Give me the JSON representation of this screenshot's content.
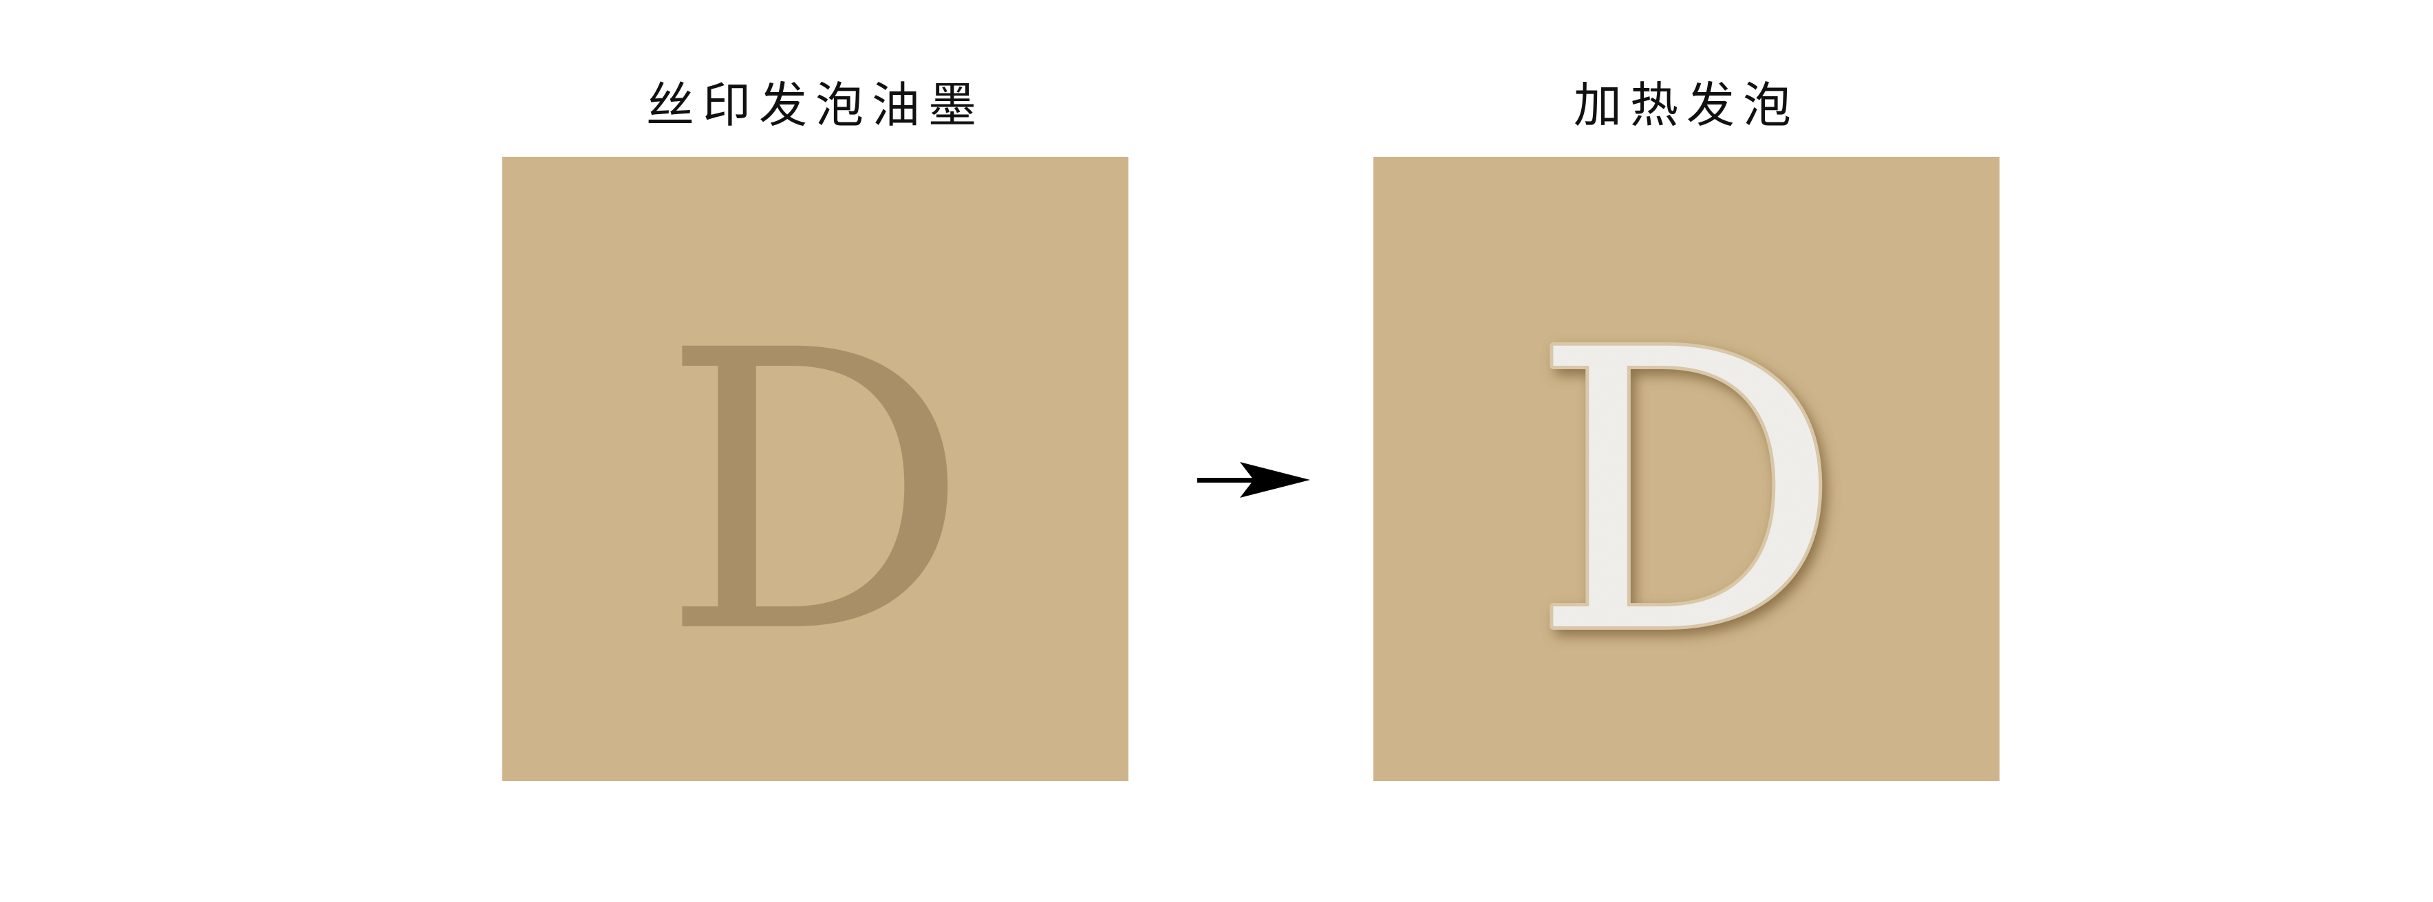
{
  "left_panel": {
    "title": "丝印发泡油墨",
    "letter": "D",
    "background_color": "#cdb48a",
    "ink_color": "#a98f67"
  },
  "right_panel": {
    "title": "加热发泡",
    "letter": "D",
    "background_color": "#cdb48a",
    "foam_color": "#f3f1ee"
  },
  "arrow": {
    "icon": "right-arrow-icon",
    "color": "#000000"
  }
}
